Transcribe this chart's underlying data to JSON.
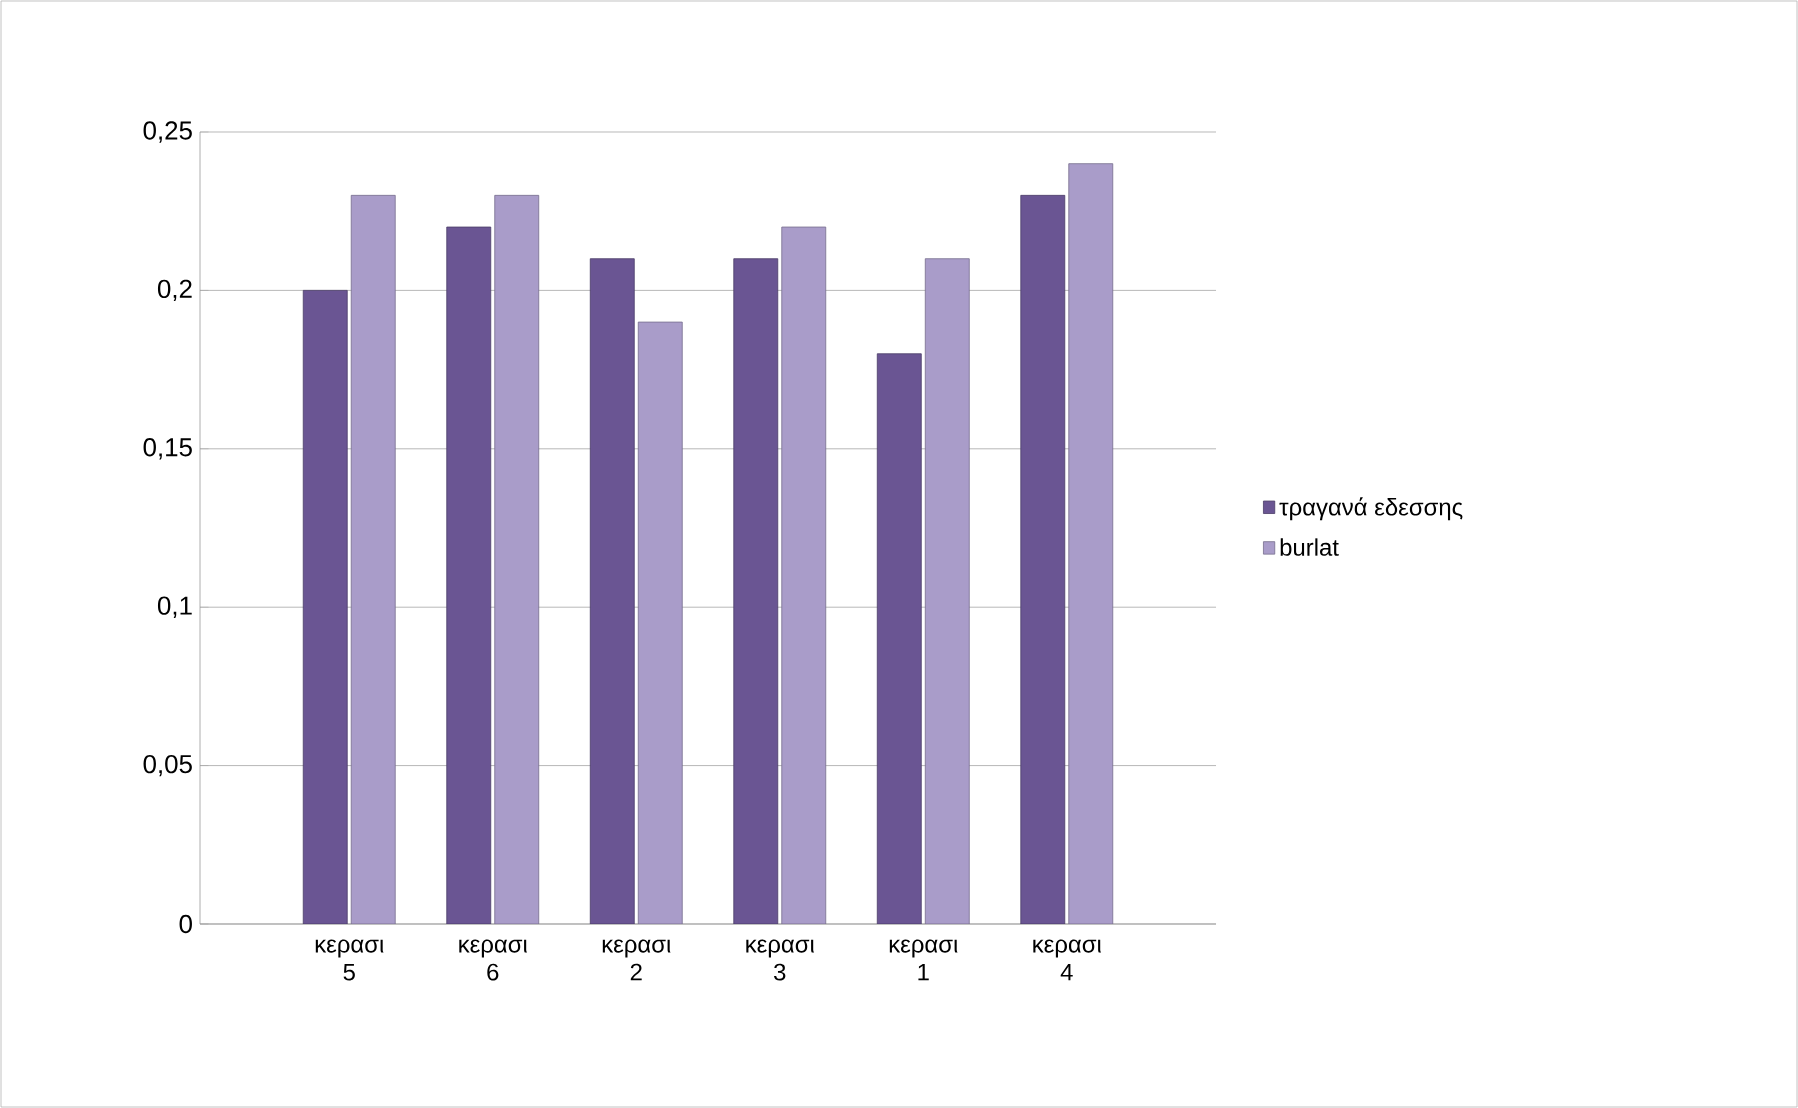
{
  "chart_data": {
    "type": "bar",
    "categories": [
      "κερασι 5",
      "κερασι 6",
      "κερασι 2",
      "κερασι 3",
      "κερασι 1",
      "κερασι 4"
    ],
    "series": [
      {
        "name": "τραγανά εδεσσης",
        "color": "#6a5593",
        "values": [
          0.2,
          0.22,
          0.21,
          0.21,
          0.18,
          0.23
        ]
      },
      {
        "name": "burlat",
        "color": "#a99cc9",
        "values": [
          0.23,
          0.23,
          0.19,
          0.22,
          0.21,
          0.24
        ]
      }
    ],
    "ylim": [
      0,
      0.25
    ],
    "yticks": [
      {
        "value": 0,
        "label": "0"
      },
      {
        "value": 0.05,
        "label": "0,05"
      },
      {
        "value": 0.1,
        "label": "0,1"
      },
      {
        "value": 0.15,
        "label": "0,15"
      },
      {
        "value": 0.2,
        "label": "0,2"
      },
      {
        "value": 0.25,
        "label": "0,25"
      }
    ],
    "grid": "y",
    "legend": "right"
  }
}
